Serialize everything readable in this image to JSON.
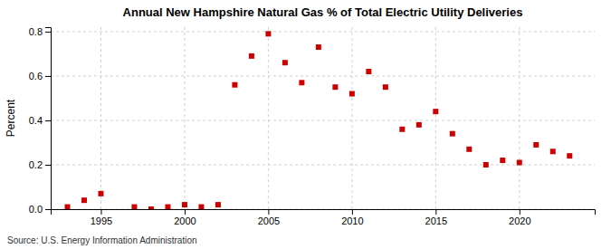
{
  "chart_data": {
    "type": "scatter",
    "title": "Annual New Hampshire Natural Gas % of Total Electric Utility Deliveries",
    "ylabel": "Percent",
    "annotations": [
      "Source: U.S. Energy Information Administration"
    ],
    "x": [
      1993,
      1994,
      1995,
      1997,
      1998,
      1999,
      2000,
      2001,
      2002,
      2003,
      2004,
      2005,
      2006,
      2007,
      2008,
      2009,
      2010,
      2011,
      2012,
      2013,
      2014,
      2015,
      2016,
      2017,
      2018,
      2019,
      2020,
      2021,
      2022,
      2023
    ],
    "values": [
      0.01,
      0.04,
      0.07,
      0.01,
      0.0,
      0.01,
      0.02,
      0.01,
      0.02,
      0.56,
      0.69,
      0.79,
      0.66,
      0.57,
      0.73,
      0.55,
      0.52,
      0.62,
      0.55,
      0.36,
      0.38,
      0.44,
      0.34,
      0.27,
      0.2,
      0.22,
      0.21,
      0.29,
      0.26,
      0.24
    ],
    "color": "#cc0000",
    "marker": "square",
    "xlim": [
      1992.0,
      2024.5
    ],
    "ylim": [
      0.0,
      0.82
    ],
    "xticks": [
      1995,
      2000,
      2005,
      2010,
      2015,
      2020
    ],
    "yticks": [
      {
        "value": 0.0,
        "label": "0.0"
      },
      0.2,
      0.4,
      0.6,
      0.8
    ],
    "grid": true
  }
}
